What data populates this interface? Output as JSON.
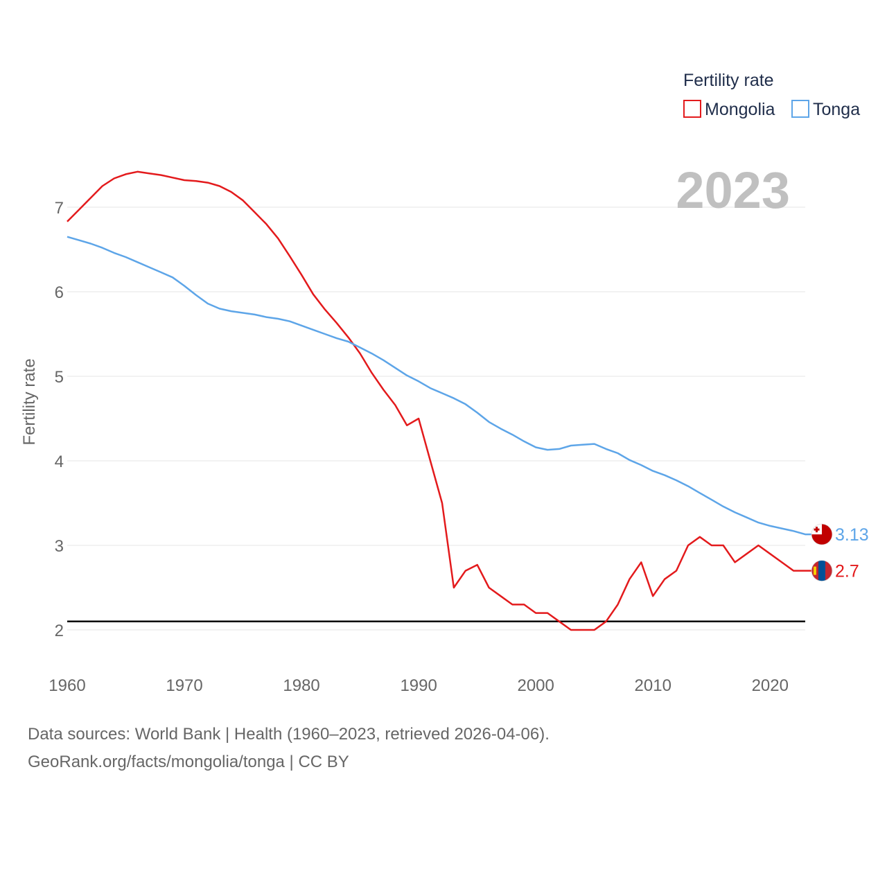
{
  "chart_data": {
    "type": "line",
    "title": "",
    "xlabel": "",
    "ylabel": "Fertility rate",
    "xlim": [
      1960,
      2023
    ],
    "ylim": [
      1.5,
      7.5
    ],
    "x_ticks": [
      1960,
      1970,
      1980,
      1990,
      2000,
      2010,
      2020
    ],
    "y_ticks": [
      2,
      3,
      4,
      5,
      6,
      7
    ],
    "grid": true,
    "year_label": "2023",
    "legend": {
      "title": "Fertility rate",
      "placement": "top-right"
    },
    "reference_line": {
      "y": 2.1,
      "color": "#000000"
    },
    "x": [
      1960,
      1961,
      1962,
      1963,
      1964,
      1965,
      1966,
      1967,
      1968,
      1969,
      1970,
      1971,
      1972,
      1973,
      1974,
      1975,
      1976,
      1977,
      1978,
      1979,
      1980,
      1981,
      1982,
      1983,
      1984,
      1985,
      1986,
      1987,
      1988,
      1989,
      1990,
      1991,
      1992,
      1993,
      1994,
      1995,
      1996,
      1997,
      1998,
      1999,
      2000,
      2001,
      2002,
      2003,
      2004,
      2005,
      2006,
      2007,
      2008,
      2009,
      2010,
      2011,
      2012,
      2013,
      2014,
      2015,
      2016,
      2017,
      2018,
      2019,
      2020,
      2021,
      2022,
      2023
    ],
    "series": [
      {
        "name": "Mongolia",
        "color": "#e31a1c",
        "end_label": "2.7",
        "values": [
          6.83,
          6.97,
          7.11,
          7.25,
          7.34,
          7.39,
          7.42,
          7.4,
          7.38,
          7.35,
          7.32,
          7.31,
          7.29,
          7.25,
          7.18,
          7.08,
          6.94,
          6.8,
          6.63,
          6.42,
          6.2,
          5.97,
          5.79,
          5.63,
          5.46,
          5.27,
          5.04,
          4.84,
          4.66,
          4.42,
          4.5,
          4.0,
          3.5,
          2.5,
          2.7,
          2.77,
          2.5,
          2.4,
          2.3,
          2.3,
          2.2,
          2.2,
          2.1,
          2.0,
          2.0,
          2.0,
          2.1,
          2.3,
          2.6,
          2.8,
          2.4,
          2.6,
          2.7,
          3.0,
          3.1,
          3.0,
          3.0,
          2.8,
          2.9,
          3.0,
          2.9,
          2.8,
          2.7,
          2.7
        ]
      },
      {
        "name": "Tonga",
        "color": "#5da5e8",
        "end_label": "3.13",
        "values": [
          6.65,
          6.61,
          6.57,
          6.52,
          6.46,
          6.41,
          6.35,
          6.29,
          6.23,
          6.17,
          6.07,
          5.96,
          5.86,
          5.8,
          5.77,
          5.75,
          5.73,
          5.7,
          5.68,
          5.65,
          5.6,
          5.55,
          5.5,
          5.45,
          5.41,
          5.34,
          5.27,
          5.19,
          5.1,
          5.01,
          4.94,
          4.86,
          4.8,
          4.74,
          4.67,
          4.57,
          4.46,
          4.38,
          4.31,
          4.23,
          4.16,
          4.13,
          4.14,
          4.18,
          4.19,
          4.2,
          4.14,
          4.09,
          4.01,
          3.95,
          3.88,
          3.83,
          3.77,
          3.7,
          3.62,
          3.54,
          3.46,
          3.39,
          3.33,
          3.27,
          3.23,
          3.2,
          3.17,
          3.13
        ]
      }
    ]
  },
  "footer": {
    "line1": "Data sources: World Bank | Health (1960–2023, retrieved 2026-04-06).",
    "line2": "GeoRank.org/facts/mongolia/tonga | CC BY"
  }
}
